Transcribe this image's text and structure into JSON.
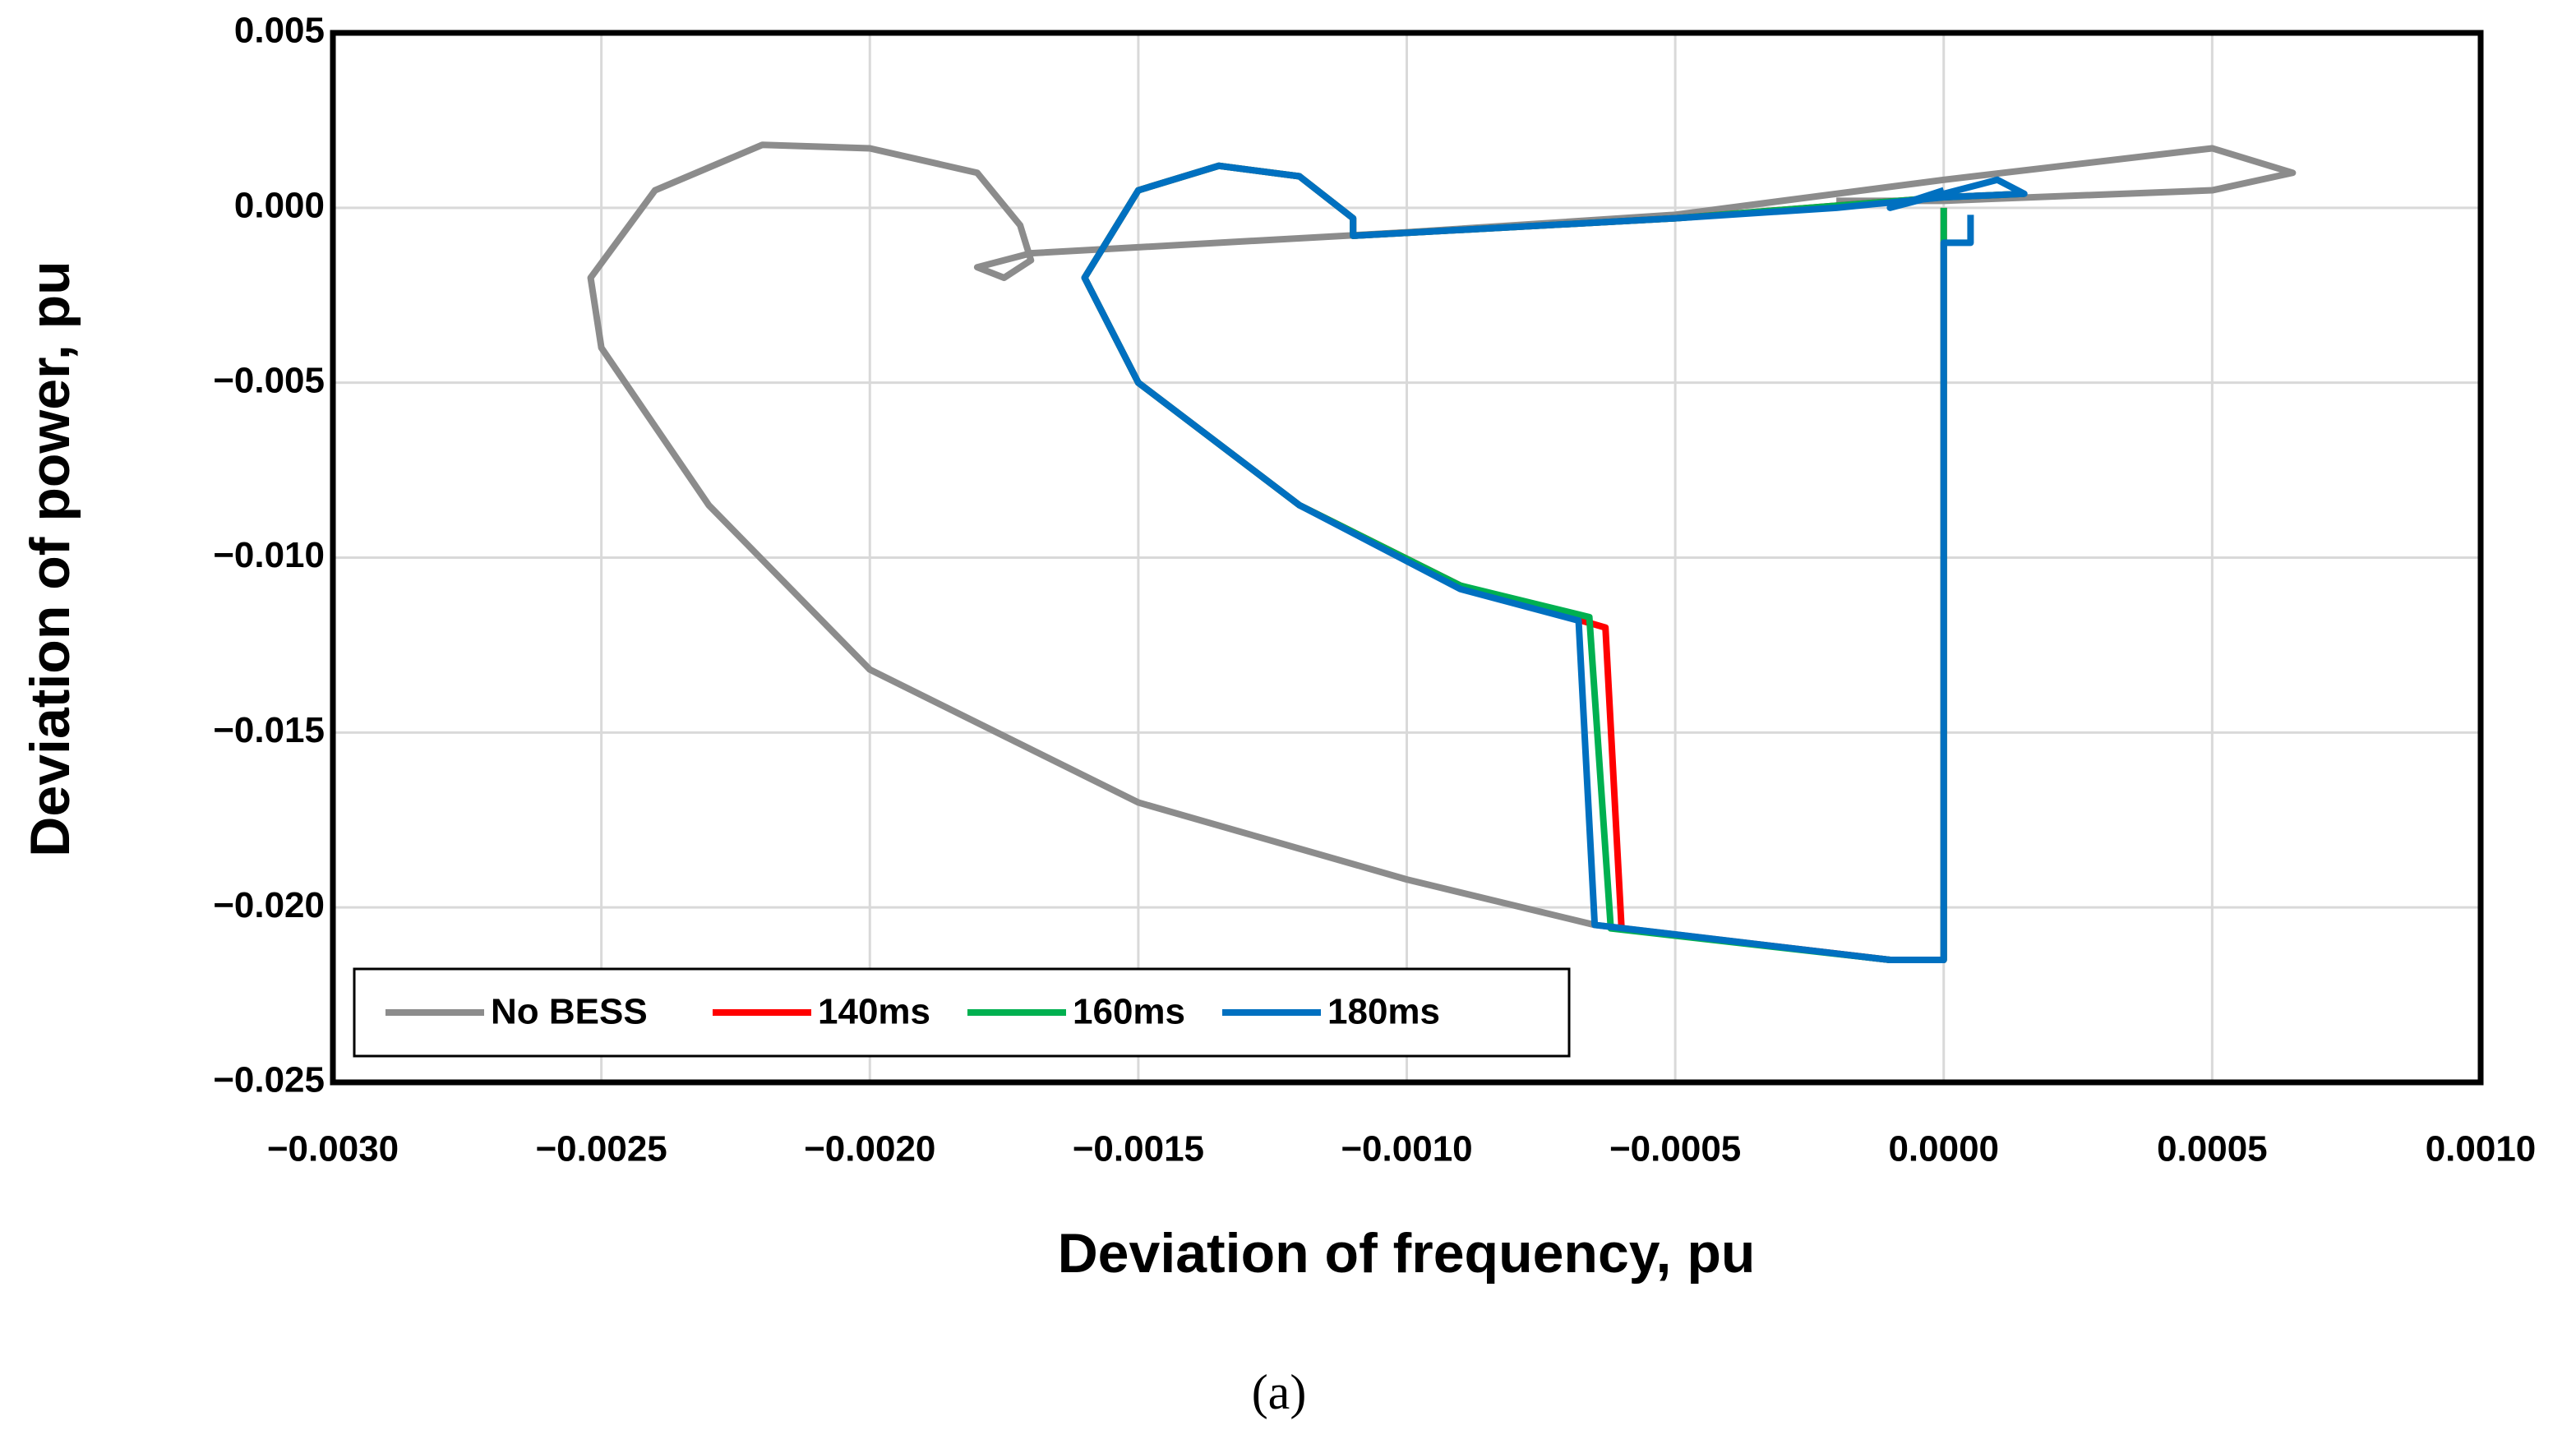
{
  "chart_data": {
    "type": "line",
    "xlabel": "Deviation of frequency, pu",
    "ylabel": "Deviation of power, pu",
    "caption": "(a)",
    "xlim": [
      -0.003,
      0.001
    ],
    "ylim": [
      -0.025,
      0.005
    ],
    "xticks": [
      {
        "value": -0.003,
        "label": "−0.0030"
      },
      {
        "value": -0.0025,
        "label": "−0.0025"
      },
      {
        "value": -0.002,
        "label": "−0.0020"
      },
      {
        "value": -0.0015,
        "label": "−0.0015"
      },
      {
        "value": -0.001,
        "label": "−0.0010"
      },
      {
        "value": -0.0005,
        "label": "−0.0005"
      },
      {
        "value": 0,
        "label": "0.0000"
      },
      {
        "value": 0.0005,
        "label": "0.0005"
      },
      {
        "value": 0.001,
        "label": "0.0010"
      }
    ],
    "yticks": [
      {
        "value": -0.025,
        "label": "−0.025"
      },
      {
        "value": -0.02,
        "label": "−0.020"
      },
      {
        "value": -0.015,
        "label": "−0.015"
      },
      {
        "value": -0.01,
        "label": "−0.010"
      },
      {
        "value": -0.005,
        "label": "−0.005"
      },
      {
        "value": 0,
        "label": "0.000"
      },
      {
        "value": 0.005,
        "label": "0.005"
      }
    ],
    "grid": true,
    "legend": "lower left",
    "series": [
      {
        "name": "No BESS",
        "color": "#8c8c8c",
        "x": [
          0,
          -0.0001,
          -0.00065,
          -0.001,
          -0.0015,
          -0.002,
          -0.0023,
          -0.0025,
          -0.00252,
          -0.0024,
          -0.0022,
          -0.002,
          -0.0018,
          -0.00172,
          -0.0017,
          -0.00175,
          -0.0018,
          -0.0017,
          -0.001,
          -0.0005,
          0,
          0.0005,
          0.00065,
          0.0005,
          0,
          -0.0002
        ],
        "values": [
          -0.0215,
          -0.0215,
          -0.0205,
          -0.0192,
          -0.017,
          -0.0132,
          -0.0085,
          -0.004,
          -0.002,
          0.0005,
          0.0018,
          0.0017,
          0.001,
          -0.0005,
          -0.0015,
          -0.002,
          -0.0017,
          -0.0013,
          -0.0007,
          -0.0002,
          0.0008,
          0.0017,
          0.001,
          0.0005,
          0.0002,
          0.0002
        ]
      },
      {
        "name": "140ms",
        "color": "#ff0000",
        "x": [
          0,
          0,
          -0.0001,
          -0.0006,
          -0.00063,
          -0.0009,
          -0.0012,
          -0.0015,
          -0.0016,
          -0.0015,
          -0.00135,
          -0.0012,
          -0.0011,
          -0.0011,
          -0.0005,
          0,
          0.00015
        ],
        "values": [
          0,
          -0.0215,
          -0.0215,
          -0.0206,
          -0.012,
          -0.0108,
          -0.0085,
          -0.005,
          -0.002,
          0.0005,
          0.0012,
          0.0009,
          -0.0003,
          -0.0008,
          -0.0003,
          0.0003,
          0.0004
        ]
      },
      {
        "name": "160ms",
        "color": "#00b050",
        "x": [
          0,
          0,
          -0.0001,
          -0.00062,
          -0.00066,
          -0.0009,
          -0.0012,
          -0.0015,
          -0.0016,
          -0.0015,
          -0.00135,
          -0.0012,
          -0.0011,
          -0.0011,
          -0.0005,
          0,
          0.00015
        ],
        "values": [
          0,
          -0.0215,
          -0.0215,
          -0.0206,
          -0.0117,
          -0.0108,
          -0.0085,
          -0.005,
          -0.002,
          0.0005,
          0.0012,
          0.0009,
          -0.0003,
          -0.0008,
          -0.0003,
          0.0003,
          0.0004
        ]
      },
      {
        "name": "180ms",
        "color": "#0070c0",
        "x": [
          5e-05,
          5e-05,
          0,
          0,
          -0.0001,
          -0.00065,
          -0.00068,
          -0.0009,
          -0.0012,
          -0.0015,
          -0.0016,
          -0.0015,
          -0.00135,
          -0.0012,
          -0.0011,
          -0.0011,
          -0.0005,
          -0.0002,
          0,
          0.00015,
          0.0001,
          -0.0001,
          0
        ],
        "values": [
          -0.0002,
          -0.001,
          -0.001,
          -0.0215,
          -0.0215,
          -0.0205,
          -0.0118,
          -0.0109,
          -0.0085,
          -0.005,
          -0.002,
          0.0005,
          0.0012,
          0.0009,
          -0.0003,
          -0.0008,
          -0.0003,
          0,
          0.0003,
          0.0004,
          0.0008,
          0,
          0.0005
        ]
      }
    ]
  }
}
